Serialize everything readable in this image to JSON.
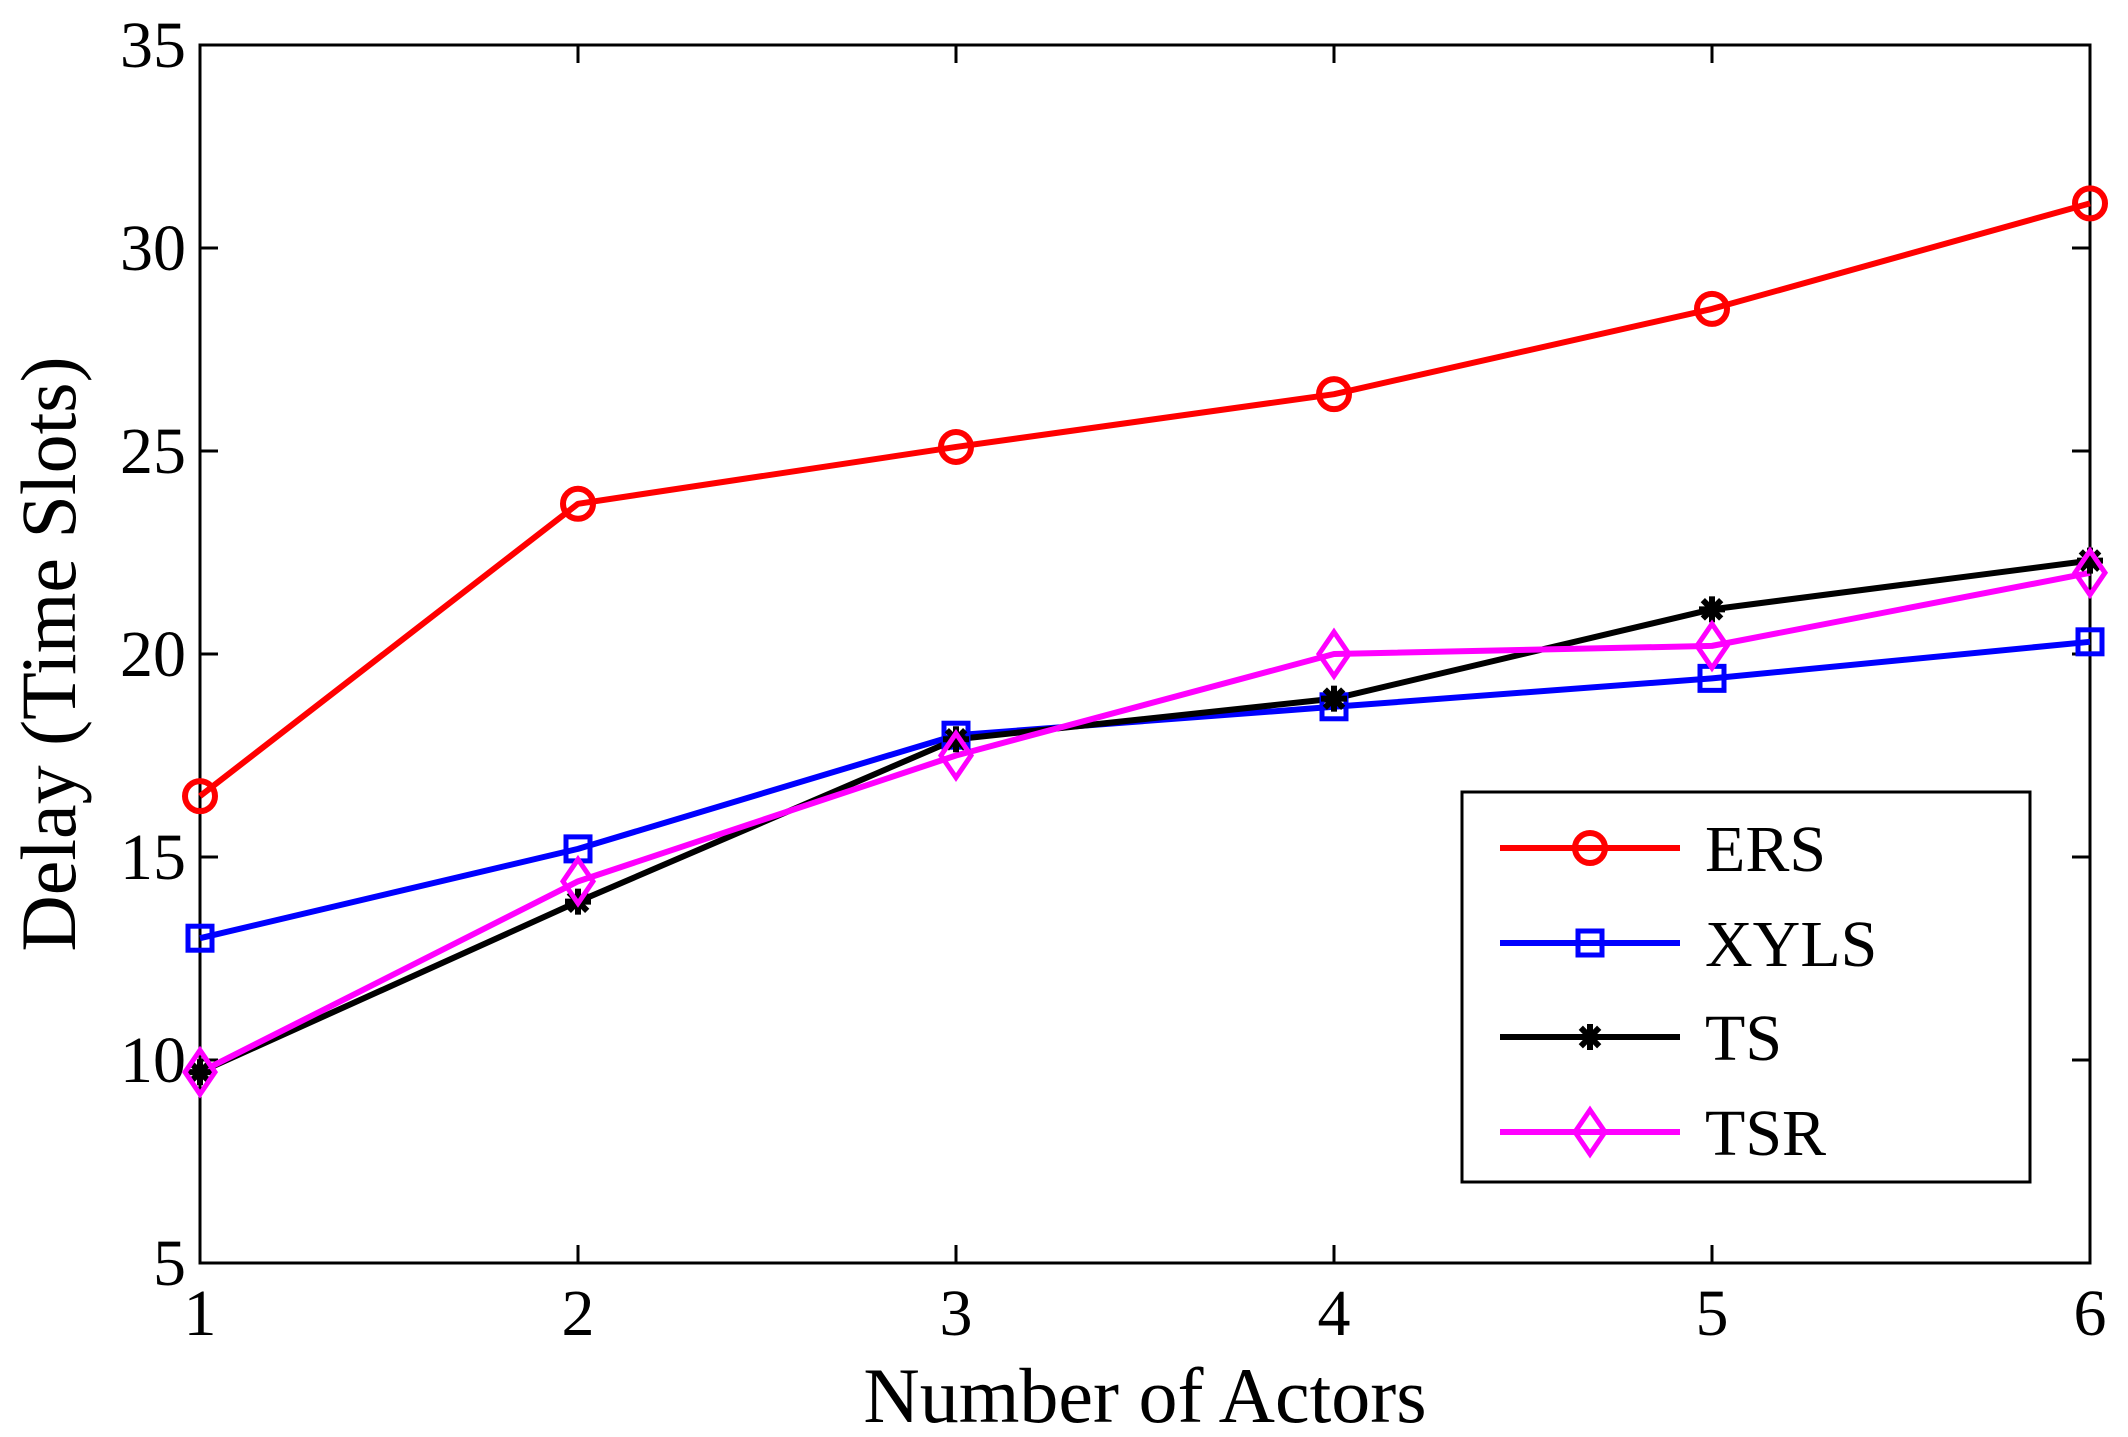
{
  "chart_data": {
    "type": "line",
    "title": "",
    "xlabel": "Number of Actors",
    "ylabel": "Delay (Time Slots)",
    "x": [
      1,
      2,
      3,
      4,
      5,
      6
    ],
    "xlim": [
      1,
      6
    ],
    "ylim": [
      5,
      35
    ],
    "xticks": [
      "1",
      "2",
      "3",
      "4",
      "5",
      "6"
    ],
    "yticks": [
      "5",
      "10",
      "15",
      "20",
      "25",
      "30",
      "35"
    ],
    "grid": false,
    "legend_position": "lower-right",
    "series": [
      {
        "name": "ERS",
        "color": "#ff0000",
        "marker": "circle",
        "values": [
          16.5,
          23.7,
          25.1,
          26.4,
          28.5,
          31.1
        ]
      },
      {
        "name": "XYLS",
        "color": "#0000ff",
        "marker": "square",
        "values": [
          13.0,
          15.2,
          18.0,
          18.7,
          19.4,
          20.3
        ]
      },
      {
        "name": "TS",
        "color": "#000000",
        "marker": "asterisk",
        "values": [
          9.7,
          13.9,
          17.9,
          18.9,
          21.1,
          22.3
        ]
      },
      {
        "name": "TSR",
        "color": "#ff00ff",
        "marker": "diamond",
        "values": [
          9.7,
          14.4,
          17.5,
          20.0,
          20.2,
          22.0
        ]
      }
    ]
  }
}
